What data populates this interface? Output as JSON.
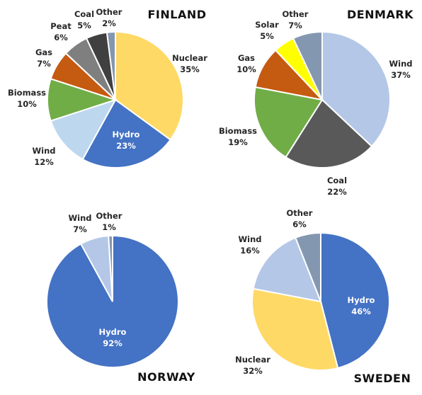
{
  "chart_data": [
    {
      "type": "pie",
      "title": "FINLAND",
      "categories": [
        "Nuclear",
        "Hydro",
        "Wind",
        "Biomass",
        "Gas",
        "Peat",
        "Coal",
        "Other"
      ],
      "values": [
        35,
        23,
        12,
        10,
        7,
        6,
        5,
        2
      ],
      "value_labels": [
        "35%",
        "23%",
        "12%",
        "10%",
        "7%",
        "6%",
        "5%",
        "2%"
      ],
      "colors": [
        "#ffd966",
        "#4472c4",
        "#bdd7ee",
        "#70ad47",
        "#c55a11",
        "#7f7f7f",
        "#404040",
        "#8497b0"
      ]
    },
    {
      "type": "pie",
      "title": "DENMARK",
      "categories": [
        "Wind",
        "Coal",
        "Biomass",
        "Gas",
        "Solar",
        "Other"
      ],
      "values": [
        37,
        22,
        19,
        10,
        5,
        7
      ],
      "value_labels": [
        "37%",
        "22%",
        "19%",
        "10%",
        "5%",
        "7%"
      ],
      "colors": [
        "#b4c7e7",
        "#595959",
        "#70ad47",
        "#c55a11",
        "#ffff00",
        "#8497b0"
      ]
    },
    {
      "type": "pie",
      "title": "NORWAY",
      "categories": [
        "Hydro",
        "Wind",
        "Other"
      ],
      "values": [
        92,
        7,
        1
      ],
      "value_labels": [
        "92%",
        "7%",
        "1%"
      ],
      "colors": [
        "#4472c4",
        "#b4c7e7",
        "#8497b0"
      ]
    },
    {
      "type": "pie",
      "title": "SWEDEN",
      "categories": [
        "Hydro",
        "Nuclear",
        "Wind",
        "Other"
      ],
      "values": [
        46,
        32,
        16,
        6
      ],
      "value_labels": [
        "46%",
        "32%",
        "16%",
        "6%"
      ],
      "colors": [
        "#4472c4",
        "#ffd966",
        "#b4c7e7",
        "#8497b0"
      ]
    }
  ]
}
